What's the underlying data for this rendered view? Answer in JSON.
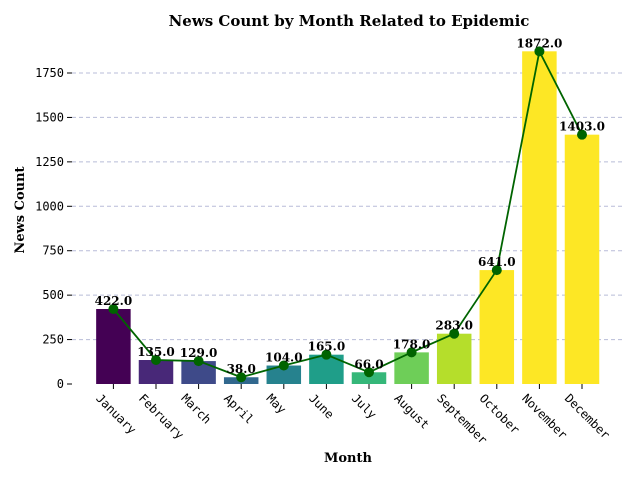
{
  "chart_data": {
    "type": "bar",
    "title": "News Count by Month Related to Epidemic",
    "xlabel": "Month",
    "ylabel": "News Count",
    "categories": [
      "January",
      "February",
      "March",
      "April",
      "May",
      "June",
      "July",
      "August",
      "September",
      "October",
      "November",
      "December"
    ],
    "values": [
      422.0,
      135.0,
      129.0,
      38.0,
      104.0,
      165.0,
      66.0,
      178.0,
      283.0,
      641.0,
      1872.0,
      1403.0
    ],
    "data_labels": [
      "422.0",
      "135.0",
      "129.0",
      "38.0",
      "104.0",
      "165.0",
      "66.0",
      "178.0",
      "283.0",
      "641.0",
      "1872.0",
      "1403.0"
    ],
    "bar_colors": [
      "#440154",
      "#482878",
      "#3e4a89",
      "#31688e",
      "#26828e",
      "#1f9e89",
      "#35b779",
      "#6ece58",
      "#b5de2b",
      "#fde725",
      "#fde725",
      "#fde725"
    ],
    "line_overlay": {
      "values": [
        422.0,
        135.0,
        129.0,
        38.0,
        104.0,
        165.0,
        66.0,
        178.0,
        283.0,
        641.0,
        1872.0,
        1403.0
      ],
      "color": "#006400",
      "marker": "circle"
    },
    "ylim": [
      0,
      1900
    ],
    "yticks": [
      0,
      250,
      500,
      750,
      1000,
      1250,
      1500,
      1750
    ],
    "grid": "horizontal-dashed",
    "legend": "none"
  }
}
